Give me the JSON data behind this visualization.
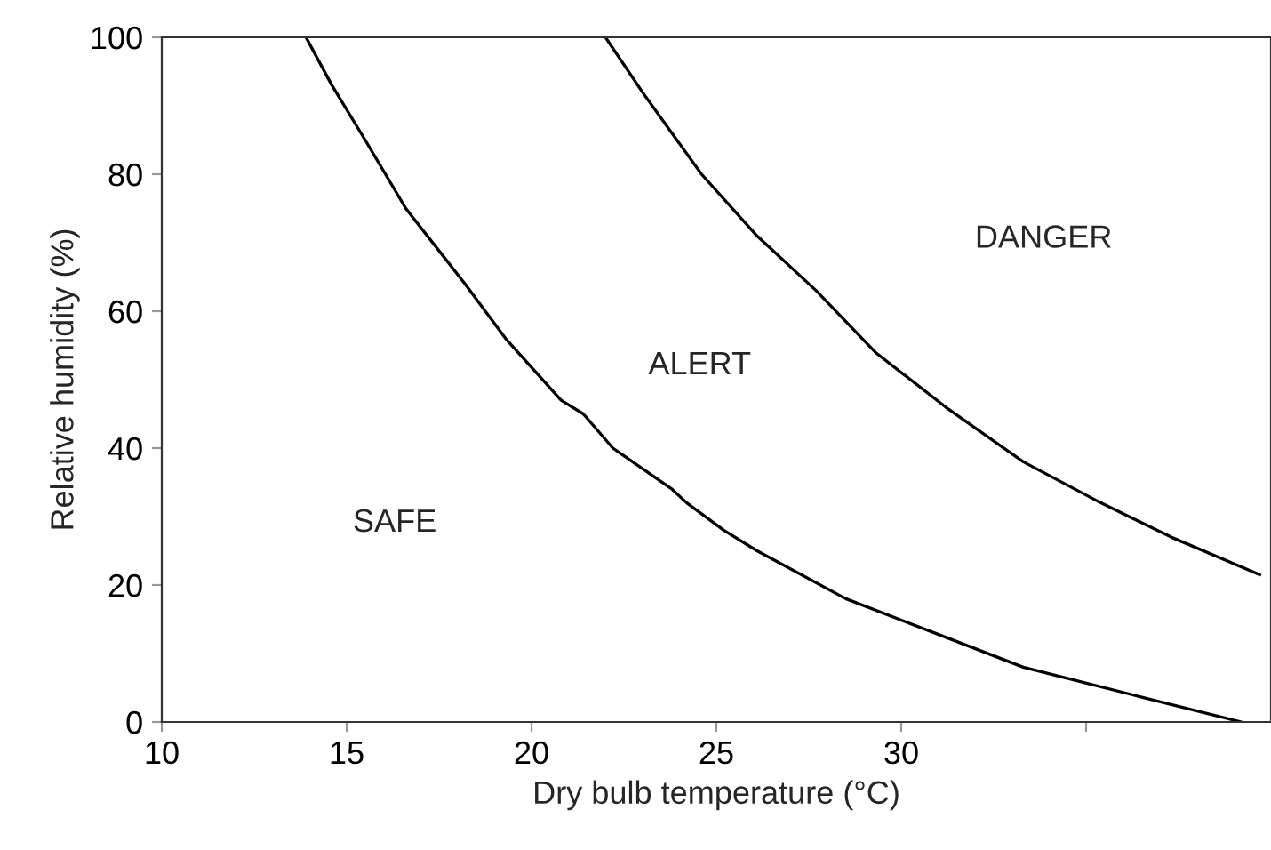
{
  "chart_data": {
    "type": "line",
    "xlabel": "Dry bulb temperature (°C)",
    "ylabel": "Relative humidity (%)",
    "xlim": [
      10,
      40
    ],
    "xticks": [
      10,
      15,
      20,
      25,
      30,
      {
        "value": 35,
        "label": null
      }
    ],
    "ylim": [
      0,
      100
    ],
    "yticks": [
      0,
      20,
      40,
      60,
      80,
      100
    ],
    "grid": false,
    "legend": false,
    "marker": "none",
    "line_style": "solid",
    "series": [
      {
        "color": "#000000",
        "x": [
          13.9,
          14.6,
          15.5,
          16.6,
          18.2,
          19.3,
          20.8,
          21.4,
          22.2,
          23.8,
          24.2,
          25.2,
          26.1,
          28.5,
          30.9,
          33.3,
          36.6,
          39.2
        ],
        "values": [
          100,
          93,
          85,
          75,
          64,
          56,
          47,
          45,
          40,
          34,
          32,
          28,
          25,
          18,
          13,
          8,
          3.5,
          0
        ]
      },
      {
        "color": "#000000",
        "x": [
          22.0,
          23.0,
          24.6,
          26.1,
          27.7,
          29.3,
          31.2,
          33.3,
          35.4,
          37.3,
          39.7
        ],
        "values": [
          100,
          92,
          80,
          71,
          63,
          54,
          46,
          38,
          32,
          27,
          21.5
        ]
      }
    ],
    "annotations": [
      "SAFE",
      "ALERT",
      "DANGER"
    ]
  }
}
